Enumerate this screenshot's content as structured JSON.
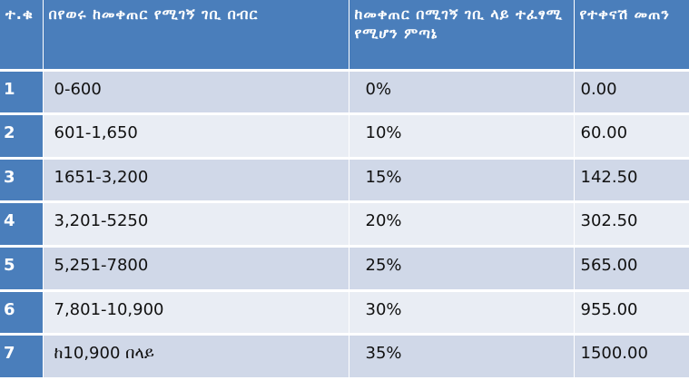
{
  "table": {
    "headers": [
      "ተ.ቁ",
      "በየወሩ ከመቀጠር የሚገኝ ገቢ በብር",
      "ከመቀጠር በሚገኝ ገቢ ላይ ተፈፃሚ የሚሆን ምጣኔ",
      "የተቀናሽ መጠን"
    ],
    "rows": [
      [
        "1",
        "0-600",
        "0%",
        "0.00"
      ],
      [
        "2",
        "601-1,650",
        "10%",
        "60.00"
      ],
      [
        "3",
        "1651-3,200",
        "15%",
        "142.50"
      ],
      [
        "4",
        "3,201-5250",
        "20%",
        "302.50"
      ],
      [
        "5",
        "5,251-7800",
        "25%",
        "565.00"
      ],
      [
        "6",
        "7,801-10,900",
        "30%",
        "955.00"
      ],
      [
        "7",
        "ከ10,900 በላይ",
        "35%",
        "1500.00"
      ]
    ]
  },
  "colors": {
    "header_bg": "#4a7ebb",
    "row_light": "#e9edf4",
    "row_dark": "#d0d8e8",
    "header_text": "#ffffff"
  }
}
